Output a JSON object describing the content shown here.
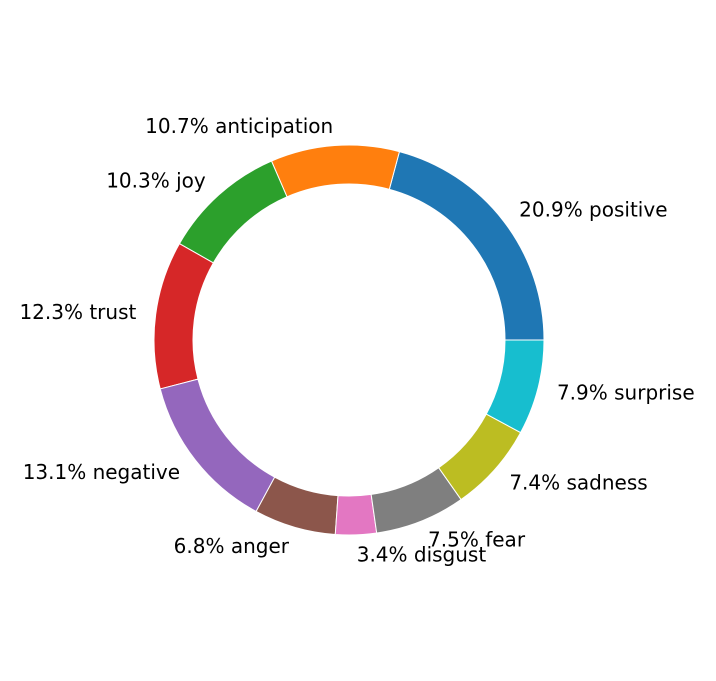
{
  "chart_data": {
    "type": "pie",
    "variant": "donut",
    "title": "",
    "start_angle_deg": 0,
    "direction": "counterclockwise",
    "slices": [
      {
        "label": "positive",
        "value": 20.9,
        "display": "20.9% positive",
        "color": "#1f77b4"
      },
      {
        "label": "anticipation",
        "value": 10.7,
        "display": "10.7% anticipation",
        "color": "#ff7f0e"
      },
      {
        "label": "joy",
        "value": 10.3,
        "display": "10.3% joy",
        "color": "#2ca02c"
      },
      {
        "label": "trust",
        "value": 12.3,
        "display": "12.3% trust",
        "color": "#d62728"
      },
      {
        "label": "negative",
        "value": 13.1,
        "display": "13.1% negative",
        "color": "#9467bd"
      },
      {
        "label": "anger",
        "value": 6.8,
        "display": "6.8% anger",
        "color": "#8c564b"
      },
      {
        "label": "disgust",
        "value": 3.4,
        "display": "3.4% disgust",
        "color": "#e377c2"
      },
      {
        "label": "fear",
        "value": 7.5,
        "display": "7.5% fear",
        "color": "#7f7f7f"
      },
      {
        "label": "sadness",
        "value": 7.4,
        "display": "7.4% sadness",
        "color": "#bcbd22"
      },
      {
        "label": "surprise",
        "value": 7.9,
        "display": "7.9% surprise",
        "color": "#17becf"
      }
    ]
  }
}
